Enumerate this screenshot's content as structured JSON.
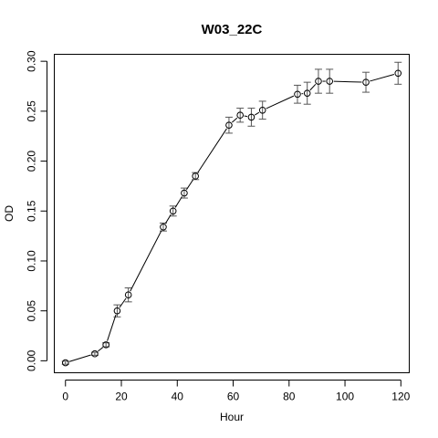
{
  "chart_data": {
    "type": "line",
    "title": "W03_22C",
    "xlabel": "Hour",
    "ylabel": "OD",
    "xlim": [
      -4,
      123
    ],
    "ylim": [
      -0.012,
      0.307
    ],
    "xticks": [
      0,
      20,
      40,
      60,
      80,
      100,
      120
    ],
    "yticks": [
      0.0,
      0.05,
      0.1,
      0.15,
      0.2,
      0.25,
      0.3
    ],
    "ytick_labels": [
      "0.00",
      "0.05",
      "0.10",
      "0.15",
      "0.20",
      "0.25",
      "0.30"
    ],
    "grid": false,
    "legend": "none",
    "marker": "open-circle",
    "colors": {
      "line": "#000000",
      "error_bar": "#555555",
      "marker": "#000000",
      "axis": "#000000"
    },
    "series": [
      {
        "x": [
          0,
          10.5,
          14.5,
          18.5,
          22.5,
          35,
          38.5,
          42.5,
          46.5,
          58.5,
          62.5,
          66.5,
          70.5,
          83,
          86.5,
          90.5,
          94.5,
          107.5,
          119
        ],
        "y": [
          -0.002,
          0.007,
          0.016,
          0.05,
          0.066,
          0.134,
          0.15,
          0.168,
          0.185,
          0.236,
          0.246,
          0.244,
          0.251,
          0.267,
          0.268,
          0.28,
          0.28,
          0.279,
          0.288
        ],
        "err": [
          0.0015,
          0.0015,
          0.002,
          0.006,
          0.007,
          0.004,
          0.005,
          0.005,
          0.0035,
          0.008,
          0.007,
          0.009,
          0.009,
          0.009,
          0.011,
          0.012,
          0.012,
          0.01,
          0.011
        ]
      }
    ]
  }
}
